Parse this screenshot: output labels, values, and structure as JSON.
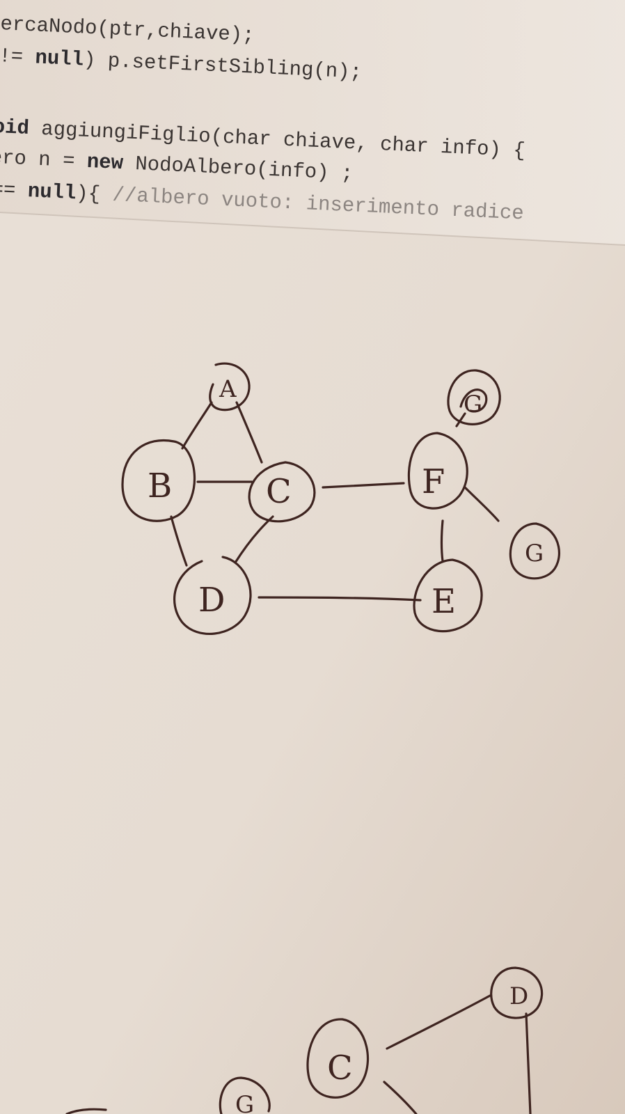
{
  "code_lines": [
    {
      "pre": "ercaNodo(ptr,chiave);",
      "kw": "",
      "post": "",
      "comment": ""
    },
    {
      "pre": " != ",
      "kw": "null",
      "post": ") p.setFirstSibling(n);",
      "comment": ""
    },
    {
      "pre": "",
      "kw": "oid",
      "post": " aggiungiFiglio(char chiave, char info) {",
      "comment": ""
    },
    {
      "pre": "ero n = ",
      "kw": "new",
      "post": " NodoAlbero(info) ;",
      "comment": ""
    },
    {
      "pre": " == ",
      "kw": "null",
      "post": "){ ",
      "comment": "//albero vuoto: inserimento radice"
    }
  ],
  "graph": {
    "nodes": [
      {
        "id": "A",
        "label": "A"
      },
      {
        "id": "B",
        "label": "B"
      },
      {
        "id": "C",
        "label": "C"
      },
      {
        "id": "D",
        "label": "D"
      },
      {
        "id": "E",
        "label": "E"
      },
      {
        "id": "F",
        "label": "F"
      },
      {
        "id": "G-top",
        "label": "G"
      },
      {
        "id": "G",
        "label": "G"
      }
    ],
    "edges": [
      [
        "A",
        "B"
      ],
      [
        "A",
        "C"
      ],
      [
        "B",
        "C"
      ],
      [
        "B",
        "D"
      ],
      [
        "C",
        "D"
      ],
      [
        "C",
        "F"
      ],
      [
        "D",
        "E"
      ],
      [
        "F",
        "E"
      ],
      [
        "F",
        "G-top"
      ],
      [
        "F",
        "G"
      ]
    ]
  },
  "bottom_sketch": {
    "nodes": [
      {
        "id": "left",
        "label": "G"
      },
      {
        "id": "middle",
        "label": "C"
      },
      {
        "id": "right",
        "label": "D"
      }
    ]
  },
  "colors": {
    "ink": "#3e2420",
    "code_text": "#3a3432",
    "code_comment": "#8c8581",
    "paper": "#e7ddd4"
  }
}
